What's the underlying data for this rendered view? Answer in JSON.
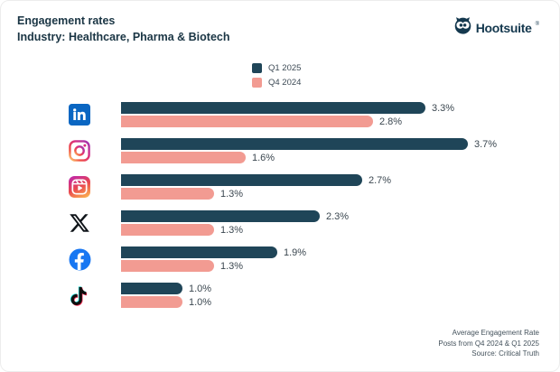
{
  "header": {
    "title": "Engagement rates",
    "subtitle": "Industry: Healthcare, Pharma & Biotech"
  },
  "brand": {
    "name": "Hootsuite",
    "registered_mark": "®"
  },
  "colors": {
    "heading": "#1A3544",
    "brand": "#14384E",
    "q1_bar": "#1F4558",
    "q4_bar": "#F29B92",
    "value_label": "#3B4750",
    "footer_text": "#44525C"
  },
  "chart_data": {
    "type": "bar",
    "orientation": "horizontal",
    "title": "Engagement rates",
    "subtitle": "Industry: Healthcare, Pharma & Biotech",
    "categories": [
      "LinkedIn",
      "Instagram",
      "Instagram Reels",
      "X",
      "Facebook",
      "TikTok"
    ],
    "series": [
      {
        "name": "Q1 2025",
        "color": "#1F4558",
        "values": [
          3.3,
          3.7,
          2.7,
          2.3,
          1.9,
          1.0
        ]
      },
      {
        "name": "Q4 2024",
        "color": "#F29B92",
        "values": [
          2.8,
          1.6,
          1.3,
          1.3,
          1.3,
          1.0
        ]
      }
    ],
    "value_suffix": "%",
    "xlim": [
      0,
      3.7
    ],
    "data_labels": true,
    "legend_position": "top-center",
    "axes_hidden": true
  },
  "footer": {
    "lines": [
      "Average Engagement Rate",
      "Posts from Q4 2024 & Q1 2025",
      "Source: Critical Truth"
    ]
  }
}
